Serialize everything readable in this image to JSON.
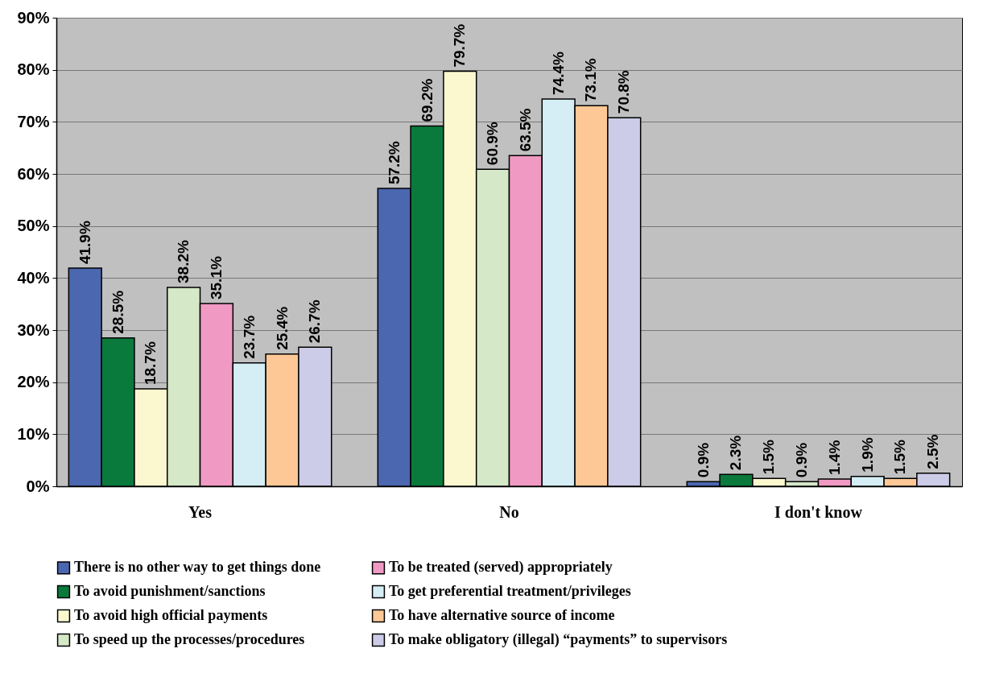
{
  "chart_data": {
    "type": "bar",
    "categories": [
      "Yes",
      "No",
      "I don't know"
    ],
    "ylim": [
      0,
      90
    ],
    "yticks": [
      {
        "value": 0,
        "label": "0%"
      },
      {
        "value": 10,
        "label": "10%"
      },
      {
        "value": 20,
        "label": "20%"
      },
      {
        "value": 30,
        "label": "30%"
      },
      {
        "value": 40,
        "label": "40%"
      },
      {
        "value": 50,
        "label": "50%"
      },
      {
        "value": 60,
        "label": "60%"
      },
      {
        "value": 70,
        "label": "70%"
      },
      {
        "value": 80,
        "label": "80%"
      },
      {
        "value": 90,
        "label": "90%"
      }
    ],
    "grid": "y",
    "legend": "bottom",
    "series": [
      {
        "name": "There is no other way to get things done",
        "color": "#4a67b0",
        "values": [
          41.9,
          57.2,
          0.9
        ],
        "value_labels": [
          "41.9%",
          "57.2%",
          "0.9%"
        ]
      },
      {
        "name": "To avoid punishment/sanctions",
        "color": "#0a7a3c",
        "values": [
          28.5,
          69.2,
          2.3
        ],
        "value_labels": [
          "28.5%",
          "69.2%",
          "2.3%"
        ]
      },
      {
        "name": "To avoid high official payments",
        "color": "#fbf8cf",
        "values": [
          18.7,
          79.7,
          1.5
        ],
        "value_labels": [
          "18.7%",
          "79.7%",
          "1.5%"
        ]
      },
      {
        "name": "To speed up the processes/procedures",
        "color": "#d5e8c8",
        "values": [
          38.2,
          60.9,
          0.9
        ],
        "value_labels": [
          "38.2%",
          "60.9%",
          "0.9%"
        ]
      },
      {
        "name": "To be treated (served) appropriately",
        "color": "#f09ac3",
        "values": [
          35.1,
          63.5,
          1.4
        ],
        "value_labels": [
          "35.1%",
          "63.5%",
          "1.4%"
        ]
      },
      {
        "name": "To get preferential treatment/privileges",
        "color": "#d5eef5",
        "values": [
          23.7,
          74.4,
          1.9
        ],
        "value_labels": [
          "23.7%",
          "74.4%",
          "1.9%"
        ]
      },
      {
        "name": "To have alternative source of income",
        "color": "#fdc896",
        "values": [
          25.4,
          73.1,
          1.5
        ],
        "value_labels": [
          "25.4%",
          "73.1%",
          "1.5%"
        ]
      },
      {
        "name": "To make obligatory (illegal) “payments” to supervisors",
        "color": "#cccce8",
        "values": [
          26.7,
          70.8,
          2.5
        ],
        "value_labels": [
          "26.7%",
          "70.8%",
          "2.5%"
        ]
      }
    ]
  }
}
